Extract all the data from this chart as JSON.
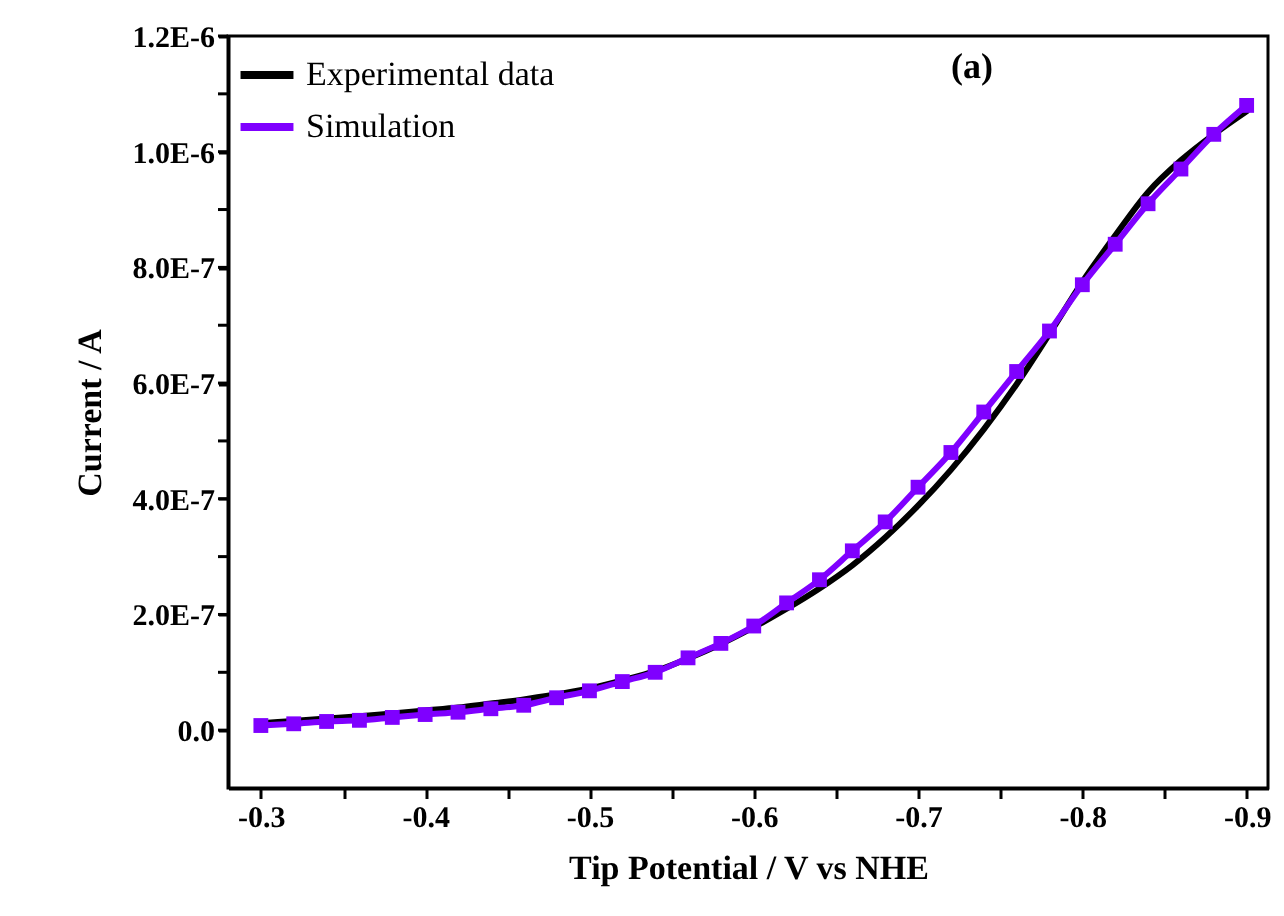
{
  "chart_data": {
    "type": "line",
    "xlabel": "Tip Potential / V vs NHE",
    "ylabel": "Current / A",
    "annotations": [
      "(a)"
    ],
    "xlim": [
      -0.28,
      -0.913
    ],
    "xticks": [
      -0.3,
      {
        "value": -0.35,
        "label": null
      },
      -0.4,
      {
        "value": -0.45,
        "label": null
      },
      -0.5,
      {
        "value": -0.55,
        "label": null
      },
      -0.6,
      {
        "value": -0.65,
        "label": null
      },
      -0.7,
      {
        "value": -0.75,
        "label": null
      },
      -0.8,
      {
        "value": -0.85,
        "label": null
      },
      -0.9
    ],
    "ylim": [
      -1e-07,
      1.2e-06
    ],
    "yticks": [
      {
        "value": 0,
        "label": "0.0"
      },
      {
        "value": 1e-07,
        "label": null
      },
      {
        "value": 2e-07,
        "label": "2.0E-7"
      },
      {
        "value": 3e-07,
        "label": null
      },
      {
        "value": 4e-07,
        "label": "4.0E-7"
      },
      {
        "value": 5e-07,
        "label": null
      },
      {
        "value": 6e-07,
        "label": "6.0E-7"
      },
      {
        "value": 7e-07,
        "label": null
      },
      {
        "value": 8e-07,
        "label": "8.0E-7"
      },
      {
        "value": 9e-07,
        "label": null
      },
      {
        "value": 1e-06,
        "label": "1.0E-6"
      },
      {
        "value": 1.1e-06,
        "label": null
      },
      {
        "value": 1.2e-06,
        "label": "1.2E-6"
      }
    ],
    "legend": "top left",
    "grid": false,
    "series": [
      {
        "name": "Experimental data",
        "color": "#000000",
        "marker": "none",
        "x": [
          -0.3,
          -0.32,
          -0.34,
          -0.36,
          -0.38,
          -0.4,
          -0.42,
          -0.44,
          -0.46,
          -0.48,
          -0.5,
          -0.52,
          -0.54,
          -0.56,
          -0.58,
          -0.6,
          -0.62,
          -0.64,
          -0.66,
          -0.68,
          -0.7,
          -0.72,
          -0.74,
          -0.76,
          -0.78,
          -0.8,
          -0.82,
          -0.84,
          -0.86,
          -0.88,
          -0.9
        ],
        "values": [
          1.2e-08,
          1.6e-08,
          2e-08,
          2.4e-08,
          2.9e-08,
          3.4e-08,
          3.9e-08,
          4.6e-08,
          5.3e-08,
          6.2e-08,
          7.2e-08,
          8.6e-08,
          1.02e-07,
          1.24e-07,
          1.49e-07,
          1.78e-07,
          2.1e-07,
          2.45e-07,
          2.85e-07,
          3.33e-07,
          3.88e-07,
          4.5e-07,
          5.2e-07,
          5.98e-07,
          6.85e-07,
          7.75e-07,
          8.55e-07,
          9.3e-07,
          9.85e-07,
          1.03e-06,
          1.07e-06
        ]
      },
      {
        "name": "Simulation",
        "color": "#7f00ff",
        "marker": "square",
        "x": [
          -0.3,
          -0.32,
          -0.34,
          -0.36,
          -0.38,
          -0.4,
          -0.42,
          -0.44,
          -0.46,
          -0.48,
          -0.5,
          -0.52,
          -0.54,
          -0.56,
          -0.58,
          -0.6,
          -0.62,
          -0.64,
          -0.66,
          -0.68,
          -0.7,
          -0.72,
          -0.74,
          -0.76,
          -0.78,
          -0.8,
          -0.82,
          -0.84,
          -0.86,
          -0.88,
          -0.9
        ],
        "values": [
          8e-09,
          1.1e-08,
          1.5e-08,
          1.7e-08,
          2.2e-08,
          2.7e-08,
          3.1e-08,
          3.7e-08,
          4.3e-08,
          5.6e-08,
          6.8e-08,
          8.4e-08,
          1e-07,
          1.25e-07,
          1.5e-07,
          1.8e-07,
          2.2e-07,
          2.6e-07,
          3.1e-07,
          3.6e-07,
          4.2e-07,
          4.8e-07,
          5.5e-07,
          6.2e-07,
          6.9e-07,
          7.7e-07,
          8.4e-07,
          9.1e-07,
          9.7e-07,
          1.03e-06,
          1.08e-06
        ]
      }
    ]
  }
}
